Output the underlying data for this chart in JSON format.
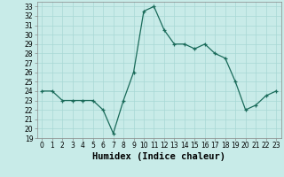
{
  "x": [
    0,
    1,
    2,
    3,
    4,
    5,
    6,
    7,
    8,
    9,
    10,
    11,
    12,
    13,
    14,
    15,
    16,
    17,
    18,
    19,
    20,
    21,
    22,
    23
  ],
  "y": [
    24,
    24,
    23,
    23,
    23,
    23,
    22,
    19.5,
    23,
    26,
    32.5,
    33,
    30.5,
    29,
    29,
    28.5,
    29,
    28,
    27.5,
    25,
    22,
    22.5,
    23.5,
    24
  ],
  "xlabel": "Humidex (Indice chaleur)",
  "line_color": "#1a6b5a",
  "marker": "+",
  "bg_color": "#c8ebe8",
  "grid_color": "#a8d8d4",
  "ylim": [
    19,
    33.5
  ],
  "xlim": [
    -0.5,
    23.5
  ],
  "yticks": [
    19,
    20,
    21,
    22,
    23,
    24,
    25,
    26,
    27,
    28,
    29,
    30,
    31,
    32,
    33
  ],
  "xticks": [
    0,
    1,
    2,
    3,
    4,
    5,
    6,
    7,
    8,
    9,
    10,
    11,
    12,
    13,
    14,
    15,
    16,
    17,
    18,
    19,
    20,
    21,
    22,
    23
  ],
  "tick_fontsize": 5.5,
  "label_fontsize": 7.5
}
